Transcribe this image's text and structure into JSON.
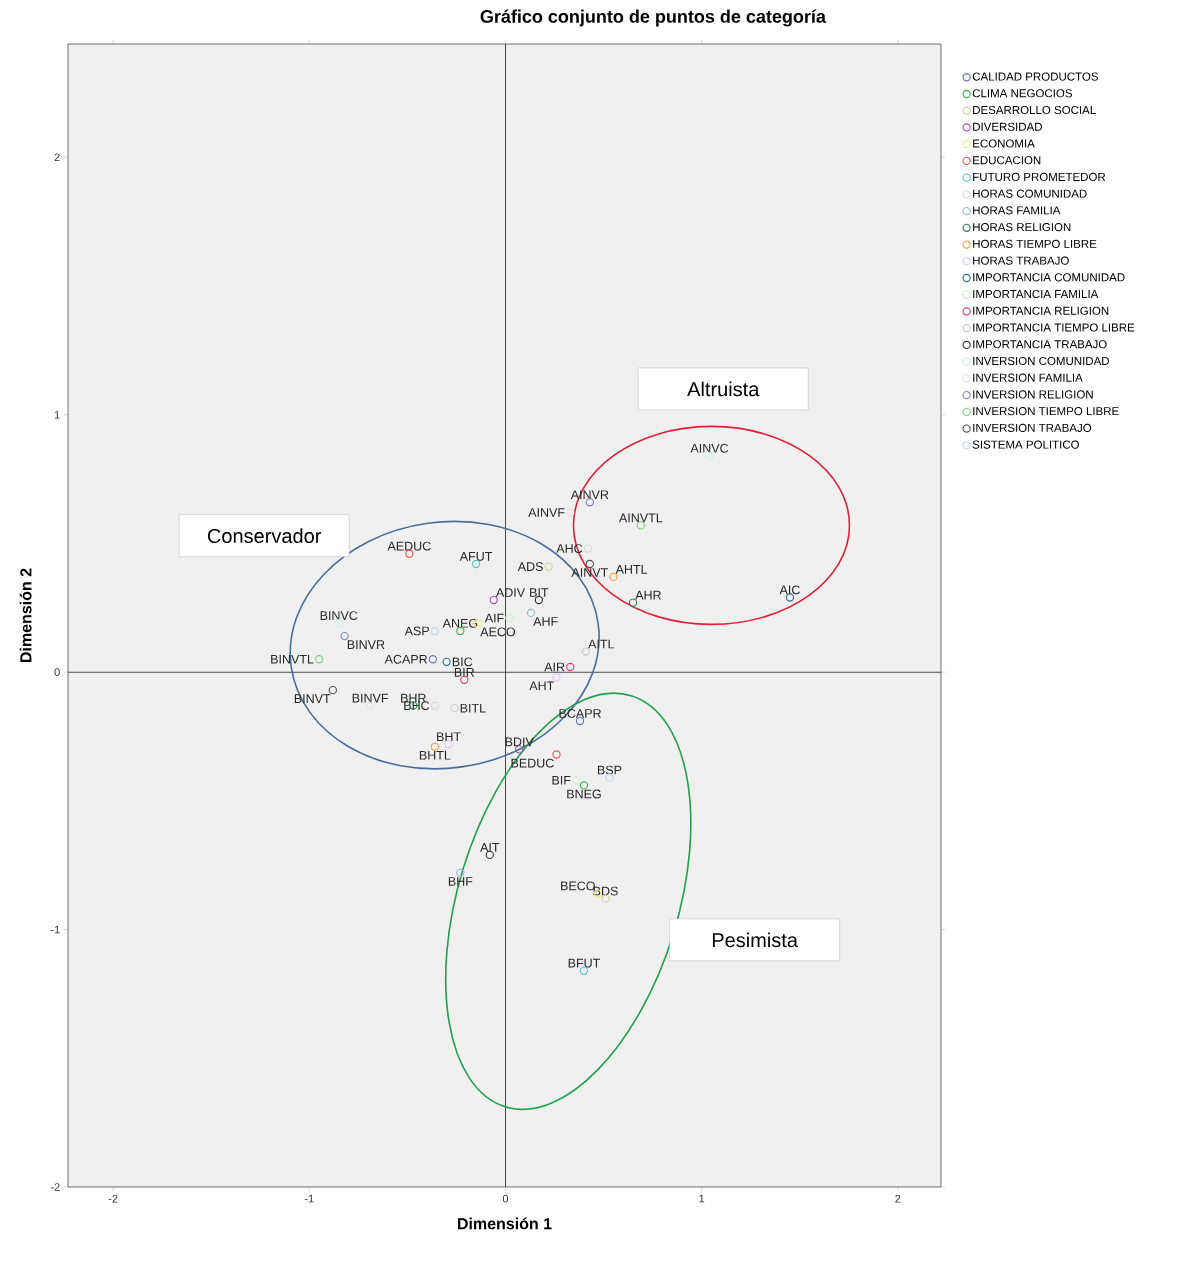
{
  "chart_data": {
    "type": "scatter",
    "title": "Gráfico conjunto de puntos de categoría",
    "xlabel": "Dimensión 1",
    "ylabel": "Dimensión 2",
    "xlim": [
      -2.23,
      2.22
    ],
    "ylim": [
      -2.0,
      2.44
    ],
    "xticks": [
      -2,
      -1,
      0,
      1,
      2
    ],
    "yticks": [
      -2,
      -1,
      0,
      1,
      2
    ],
    "grid": false,
    "legend": "right",
    "marker": "circle",
    "ref_lines": [
      {
        "axis": "x",
        "value": 0
      },
      {
        "axis": "y",
        "value": 0
      }
    ],
    "series": [
      {
        "name": "CALIDAD PRODUCTOS",
        "color": "#6b6fc0",
        "x": [
          -0.37,
          0.38
        ],
        "values": [
          0.05,
          -0.19
        ]
      },
      {
        "name": "CLIMA NEGOCIOS",
        "color": "#3cb44b",
        "x": [
          -0.23,
          0.4
        ],
        "values": [
          0.16,
          -0.44
        ]
      },
      {
        "name": "DESARROLLO SOCIAL",
        "color": "#d8d0a8",
        "x": [
          0.22,
          0.51
        ],
        "values": [
          0.41,
          -0.88
        ]
      },
      {
        "name": "DIVERSIDAD",
        "color": "#9b4fa8",
        "x": [
          -0.06,
          0.07
        ],
        "values": [
          0.28,
          -0.3
        ]
      },
      {
        "name": "ECONOMIA",
        "color": "#f0ec80",
        "x": [
          -0.14,
          0.47
        ],
        "values": [
          0.19,
          -0.86
        ]
      },
      {
        "name": "EDUCACION",
        "color": "#e8504f",
        "x": [
          -0.49,
          0.26
        ],
        "values": [
          0.46,
          -0.32
        ]
      },
      {
        "name": "FUTURO PROMETEDOR",
        "color": "#5ac8d0",
        "x": [
          -0.15,
          0.4
        ],
        "values": [
          0.42,
          -1.16
        ]
      },
      {
        "name": "HORAS COMUNIDAD",
        "color": "#d8d8d8",
        "x": [
          0.42,
          -0.36
        ],
        "values": [
          0.48,
          -0.13
        ]
      },
      {
        "name": "HORAS FAMILIA",
        "color": "#9ab8e0",
        "x": [
          0.13,
          -0.23
        ],
        "values": [
          0.23,
          -0.78
        ]
      },
      {
        "name": "HORAS RELIGION",
        "color": "#2e7a50",
        "x": [
          0.65,
          -0.47
        ],
        "values": [
          0.27,
          -0.13
        ]
      },
      {
        "name": "HORAS TIEMPO LIBRE",
        "color": "#f0a040",
        "x": [
          0.55,
          -0.36
        ],
        "values": [
          0.37,
          -0.29
        ]
      },
      {
        "name": "HORAS TRABAJO",
        "color": "#e0c8f0",
        "x": [
          0.26,
          -0.29
        ],
        "values": [
          -0.02,
          -0.28
        ]
      },
      {
        "name": "IMPORTANCIA COMUNIDAD",
        "color": "#2f6f8a",
        "x": [
          1.45,
          -0.3
        ],
        "values": [
          0.29,
          0.04
        ]
      },
      {
        "name": "IMPORTANCIA FAMILIA",
        "color": "#d0f0d0",
        "x": [
          0.02,
          0.36
        ],
        "values": [
          0.21,
          -0.42
        ]
      },
      {
        "name": "IMPORTANCIA RELIGION",
        "color": "#d04080",
        "x": [
          0.33,
          -0.21
        ],
        "values": [
          0.02,
          -0.03
        ]
      },
      {
        "name": "IMPORTANCIA TIEMPO LIBRE",
        "color": "#c8c8c8",
        "x": [
          0.41,
          -0.26
        ],
        "values": [
          0.08,
          -0.14
        ]
      },
      {
        "name": "IMPORTANCIA TRABAJO",
        "color": "#303030",
        "x": [
          -0.08,
          0.17
        ],
        "values": [
          -0.71,
          0.28
        ]
      },
      {
        "name": "INVERSION COMUNIDAD",
        "color": "#c8f0f0",
        "x": [
          1.04,
          -0.85
        ],
        "values": [
          0.84,
          0.19
        ]
      },
      {
        "name": "INVERSION FAMILIA",
        "color": "#e4e4e4",
        "x": [
          0.33,
          -0.69
        ],
        "values": [
          0.62,
          -0.13
        ]
      },
      {
        "name": "INVERSION RELIGION",
        "color": "#8080c0",
        "x": [
          0.43,
          -0.82
        ],
        "values": [
          0.66,
          0.14
        ]
      },
      {
        "name": "INVERSION TIEMPO LIBRE",
        "color": "#80d080",
        "x": [
          0.69,
          -0.95
        ],
        "values": [
          0.57,
          0.05
        ]
      },
      {
        "name": "INVERSION TRABAJO",
        "color": "#505050",
        "x": [
          0.43,
          -0.88
        ],
        "values": [
          0.42,
          -0.07
        ]
      },
      {
        "name": "SISTEMA POLITICO",
        "color": "#c0d8f0",
        "x": [
          -0.36,
          0.53
        ],
        "values": [
          0.16,
          -0.41
        ]
      }
    ],
    "annotations": [
      "Conservador",
      "Altruista",
      "Pesimista",
      {
        "text": "ACAPR",
        "x": -0.37,
        "y": 0.05
      },
      {
        "text": "BCAPR",
        "x": 0.38,
        "y": -0.19
      },
      {
        "text": "ANEG",
        "x": -0.23,
        "y": 0.16
      },
      {
        "text": "BNEG",
        "x": 0.4,
        "y": -0.44
      },
      {
        "text": "ADS",
        "x": 0.22,
        "y": 0.41
      },
      {
        "text": "BDS",
        "x": 0.51,
        "y": -0.88
      },
      {
        "text": "ADIV",
        "x": -0.06,
        "y": 0.28
      },
      {
        "text": "BDIV",
        "x": 0.07,
        "y": -0.3
      },
      {
        "text": "AECO",
        "x": -0.14,
        "y": 0.19
      },
      {
        "text": "BECO",
        "x": 0.47,
        "y": -0.86
      },
      {
        "text": "AEDUC",
        "x": -0.49,
        "y": 0.46
      },
      {
        "text": "BEDUC",
        "x": 0.26,
        "y": -0.32
      },
      {
        "text": "AFUT",
        "x": -0.15,
        "y": 0.42
      },
      {
        "text": "BFUT",
        "x": 0.4,
        "y": -1.16
      },
      {
        "text": "AHC",
        "x": 0.42,
        "y": 0.48
      },
      {
        "text": "BHC",
        "x": -0.36,
        "y": -0.13
      },
      {
        "text": "AHF",
        "x": 0.13,
        "y": 0.23
      },
      {
        "text": "BHF",
        "x": -0.23,
        "y": -0.78
      },
      {
        "text": "AHR",
        "x": 0.65,
        "y": 0.27
      },
      {
        "text": "BHR",
        "x": -0.47,
        "y": -0.13
      },
      {
        "text": "AHTL",
        "x": 0.55,
        "y": 0.37
      },
      {
        "text": "BHTL",
        "x": -0.36,
        "y": -0.29
      },
      {
        "text": "AHT",
        "x": 0.26,
        "y": -0.02
      },
      {
        "text": "BHT",
        "x": -0.29,
        "y": -0.28
      },
      {
        "text": "AIC",
        "x": 1.45,
        "y": 0.29
      },
      {
        "text": "BIC",
        "x": -0.3,
        "y": 0.04
      },
      {
        "text": "AIF",
        "x": 0.02,
        "y": 0.21
      },
      {
        "text": "BIF",
        "x": 0.36,
        "y": -0.42
      },
      {
        "text": "AIR",
        "x": 0.33,
        "y": 0.02
      },
      {
        "text": "BIR",
        "x": -0.21,
        "y": -0.03
      },
      {
        "text": "AITL",
        "x": 0.41,
        "y": 0.08
      },
      {
        "text": "BITL",
        "x": -0.26,
        "y": -0.14
      },
      {
        "text": "AIT",
        "x": -0.08,
        "y": -0.71
      },
      {
        "text": "BIT",
        "x": 0.17,
        "y": 0.28
      },
      {
        "text": "AINVC",
        "x": 1.04,
        "y": 0.84
      },
      {
        "text": "BINVC",
        "x": -0.85,
        "y": 0.19
      },
      {
        "text": "AINVF",
        "x": 0.33,
        "y": 0.62
      },
      {
        "text": "BINVF",
        "x": -0.69,
        "y": -0.13
      },
      {
        "text": "AINVR",
        "x": 0.43,
        "y": 0.66
      },
      {
        "text": "BINVR",
        "x": -0.82,
        "y": 0.14
      },
      {
        "text": "AINVTL",
        "x": 0.69,
        "y": 0.57
      },
      {
        "text": "BINVTL",
        "x": -0.95,
        "y": 0.05
      },
      {
        "text": "AINVT",
        "x": 0.43,
        "y": 0.42
      },
      {
        "text": "BINVT",
        "x": -0.88,
        "y": -0.07
      },
      {
        "text": "ASP",
        "x": -0.36,
        "y": 0.16
      },
      {
        "text": "BSP",
        "x": 0.53,
        "y": -0.41
      }
    ]
  }
}
